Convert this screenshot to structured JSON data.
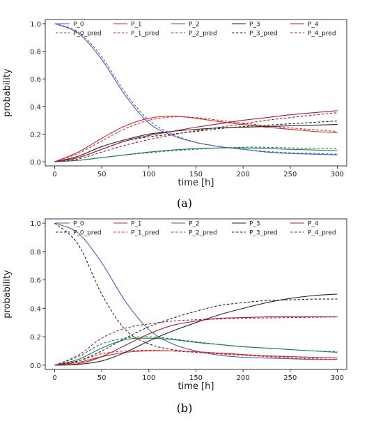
{
  "chart_data": [
    {
      "type": "line",
      "caption": "(a)",
      "xlabel": "time [h]",
      "ylabel": "probability",
      "xlim": [
        -10,
        310
      ],
      "ylim": [
        -0.03,
        1.03
      ],
      "xticks": [
        0,
        50,
        100,
        150,
        200,
        250,
        300
      ],
      "yticks": [
        0.0,
        0.2,
        0.4,
        0.6,
        0.8,
        1.0
      ],
      "xtick_labels": [
        "0",
        "50",
        "100",
        "150",
        "200",
        "250",
        "300"
      ],
      "ytick_labels": [
        "0.0",
        "0.2",
        "0.4",
        "0.6",
        "0.8",
        "1.0"
      ],
      "grid": false,
      "legend_placement": "top",
      "x": [
        0,
        25,
        50,
        75,
        100,
        125,
        150,
        175,
        200,
        225,
        250,
        275,
        300
      ],
      "series": [
        {
          "name": "P_0",
          "color": "#4b5fbf",
          "dash": "solid",
          "values": [
            1.0,
            0.93,
            0.74,
            0.48,
            0.28,
            0.19,
            0.14,
            0.11,
            0.09,
            0.07,
            0.06,
            0.055,
            0.05
          ]
        },
        {
          "name": "P_0_pred",
          "color": "#4b5fbf",
          "dash": "dashed",
          "values": [
            1.0,
            0.94,
            0.76,
            0.5,
            0.3,
            0.2,
            0.14,
            0.11,
            0.09,
            0.075,
            0.065,
            0.06,
            0.055
          ]
        },
        {
          "name": "P_1",
          "color": "#d62728",
          "dash": "solid",
          "values": [
            0.0,
            0.07,
            0.17,
            0.26,
            0.315,
            0.33,
            0.315,
            0.29,
            0.27,
            0.25,
            0.235,
            0.22,
            0.21
          ]
        },
        {
          "name": "P_1_pred",
          "color": "#d62728",
          "dash": "dashed",
          "values": [
            0.0,
            0.06,
            0.15,
            0.24,
            0.3,
            0.325,
            0.32,
            0.3,
            0.28,
            0.26,
            0.245,
            0.232,
            0.22
          ]
        },
        {
          "name": "P_2",
          "color": "#1a7f4b",
          "dash": "solid",
          "values": [
            0.0,
            0.01,
            0.03,
            0.05,
            0.07,
            0.085,
            0.095,
            0.1,
            0.1,
            0.095,
            0.09,
            0.085,
            0.08
          ]
        },
        {
          "name": "P_2_pred",
          "color": "#1a7f4b",
          "dash": "dashed",
          "values": [
            0.0,
            0.01,
            0.03,
            0.05,
            0.065,
            0.08,
            0.09,
            0.1,
            0.105,
            0.105,
            0.1,
            0.097,
            0.095
          ]
        },
        {
          "name": "P_3",
          "color": "#222222",
          "dash": "solid",
          "values": [
            0.0,
            0.04,
            0.11,
            0.16,
            0.2,
            0.22,
            0.235,
            0.245,
            0.25,
            0.255,
            0.26,
            0.265,
            0.27
          ]
        },
        {
          "name": "P_3_pred",
          "color": "#222222",
          "dash": "dashed",
          "values": [
            0.0,
            0.03,
            0.09,
            0.15,
            0.18,
            0.2,
            0.22,
            0.24,
            0.255,
            0.265,
            0.275,
            0.285,
            0.295
          ]
        },
        {
          "name": "P_4",
          "color": "#a31e35",
          "dash": "solid",
          "values": [
            0.0,
            0.03,
            0.09,
            0.15,
            0.19,
            0.22,
            0.25,
            0.275,
            0.3,
            0.32,
            0.34,
            0.355,
            0.37
          ]
        },
        {
          "name": "P_4_pred",
          "color": "#a31e35",
          "dash": "dashed",
          "values": [
            0.0,
            0.02,
            0.07,
            0.12,
            0.16,
            0.195,
            0.225,
            0.25,
            0.275,
            0.3,
            0.32,
            0.338,
            0.355
          ]
        }
      ]
    },
    {
      "type": "line",
      "caption": "(b)",
      "xlabel": "time [h]",
      "ylabel": "probability",
      "xlim": [
        -10,
        310
      ],
      "ylim": [
        -0.03,
        1.03
      ],
      "xticks": [
        0,
        50,
        100,
        150,
        200,
        250,
        300
      ],
      "yticks": [
        0.0,
        0.2,
        0.4,
        0.6,
        0.8,
        1.0
      ],
      "xtick_labels": [
        "0",
        "50",
        "100",
        "150",
        "200",
        "250",
        "300"
      ],
      "ytick_labels": [
        "0.0",
        "0.2",
        "0.4",
        "0.6",
        "0.8",
        "1.0"
      ],
      "grid": false,
      "legend_placement": "top",
      "x": [
        0,
        25,
        50,
        75,
        100,
        125,
        150,
        175,
        200,
        225,
        250,
        275,
        300
      ],
      "series": [
        {
          "name": "P_0",
          "color": "#4b5fbf",
          "dash": "solid",
          "values": [
            1.0,
            0.93,
            0.72,
            0.45,
            0.25,
            0.15,
            0.1,
            0.07,
            0.055,
            0.05,
            0.045,
            0.04,
            0.04
          ]
        },
        {
          "name": "P_0_pred",
          "color": "#222222",
          "dash": "dashed",
          "values": [
            1.0,
            0.85,
            0.5,
            0.25,
            0.15,
            0.11,
            0.09,
            0.08,
            0.07,
            0.065,
            0.06,
            0.055,
            0.05
          ]
        },
        {
          "name": "P_1",
          "color": "#d62728",
          "dash": "solid",
          "values": [
            0.0,
            0.02,
            0.06,
            0.09,
            0.1,
            0.1,
            0.095,
            0.085,
            0.075,
            0.065,
            0.06,
            0.055,
            0.05
          ]
        },
        {
          "name": "P_1_pred",
          "color": "#d62728",
          "dash": "dashed",
          "values": [
            0.0,
            0.03,
            0.08,
            0.1,
            0.105,
            0.1,
            0.09,
            0.08,
            0.07,
            0.06,
            0.05,
            0.045,
            0.04
          ]
        },
        {
          "name": "P_2",
          "color": "#1a7f4b",
          "dash": "solid",
          "values": [
            0.0,
            0.04,
            0.12,
            0.18,
            0.19,
            0.18,
            0.16,
            0.145,
            0.13,
            0.12,
            0.11,
            0.1,
            0.09
          ]
        },
        {
          "name": "P_2_pred",
          "color": "#1a7f4b",
          "dash": "dashed",
          "values": [
            0.0,
            0.06,
            0.15,
            0.19,
            0.2,
            0.185,
            0.165,
            0.145,
            0.13,
            0.12,
            0.11,
            0.1,
            0.095
          ]
        },
        {
          "name": "P_3",
          "color": "#222222",
          "dash": "solid",
          "values": [
            0.0,
            0.005,
            0.03,
            0.09,
            0.17,
            0.24,
            0.3,
            0.355,
            0.4,
            0.44,
            0.47,
            0.49,
            0.5
          ]
        },
        {
          "name": "P_3_pred",
          "color": "#222222",
          "dash": "dashed",
          "values": [
            0.0,
            0.03,
            0.1,
            0.19,
            0.27,
            0.33,
            0.38,
            0.42,
            0.44,
            0.455,
            0.46,
            0.465,
            0.465
          ]
        },
        {
          "name": "P_4",
          "color": "#a31e35",
          "dash": "solid",
          "values": [
            0.0,
            0.01,
            0.06,
            0.14,
            0.22,
            0.28,
            0.31,
            0.33,
            0.335,
            0.34,
            0.34,
            0.34,
            0.34
          ]
        },
        {
          "name": "P_4_pred",
          "color": "#a31e35",
          "dash": "dashed",
          "values": [
            0.0,
            0.07,
            0.19,
            0.26,
            0.29,
            0.31,
            0.32,
            0.325,
            0.33,
            0.332,
            0.335,
            0.337,
            0.34
          ]
        }
      ]
    }
  ]
}
